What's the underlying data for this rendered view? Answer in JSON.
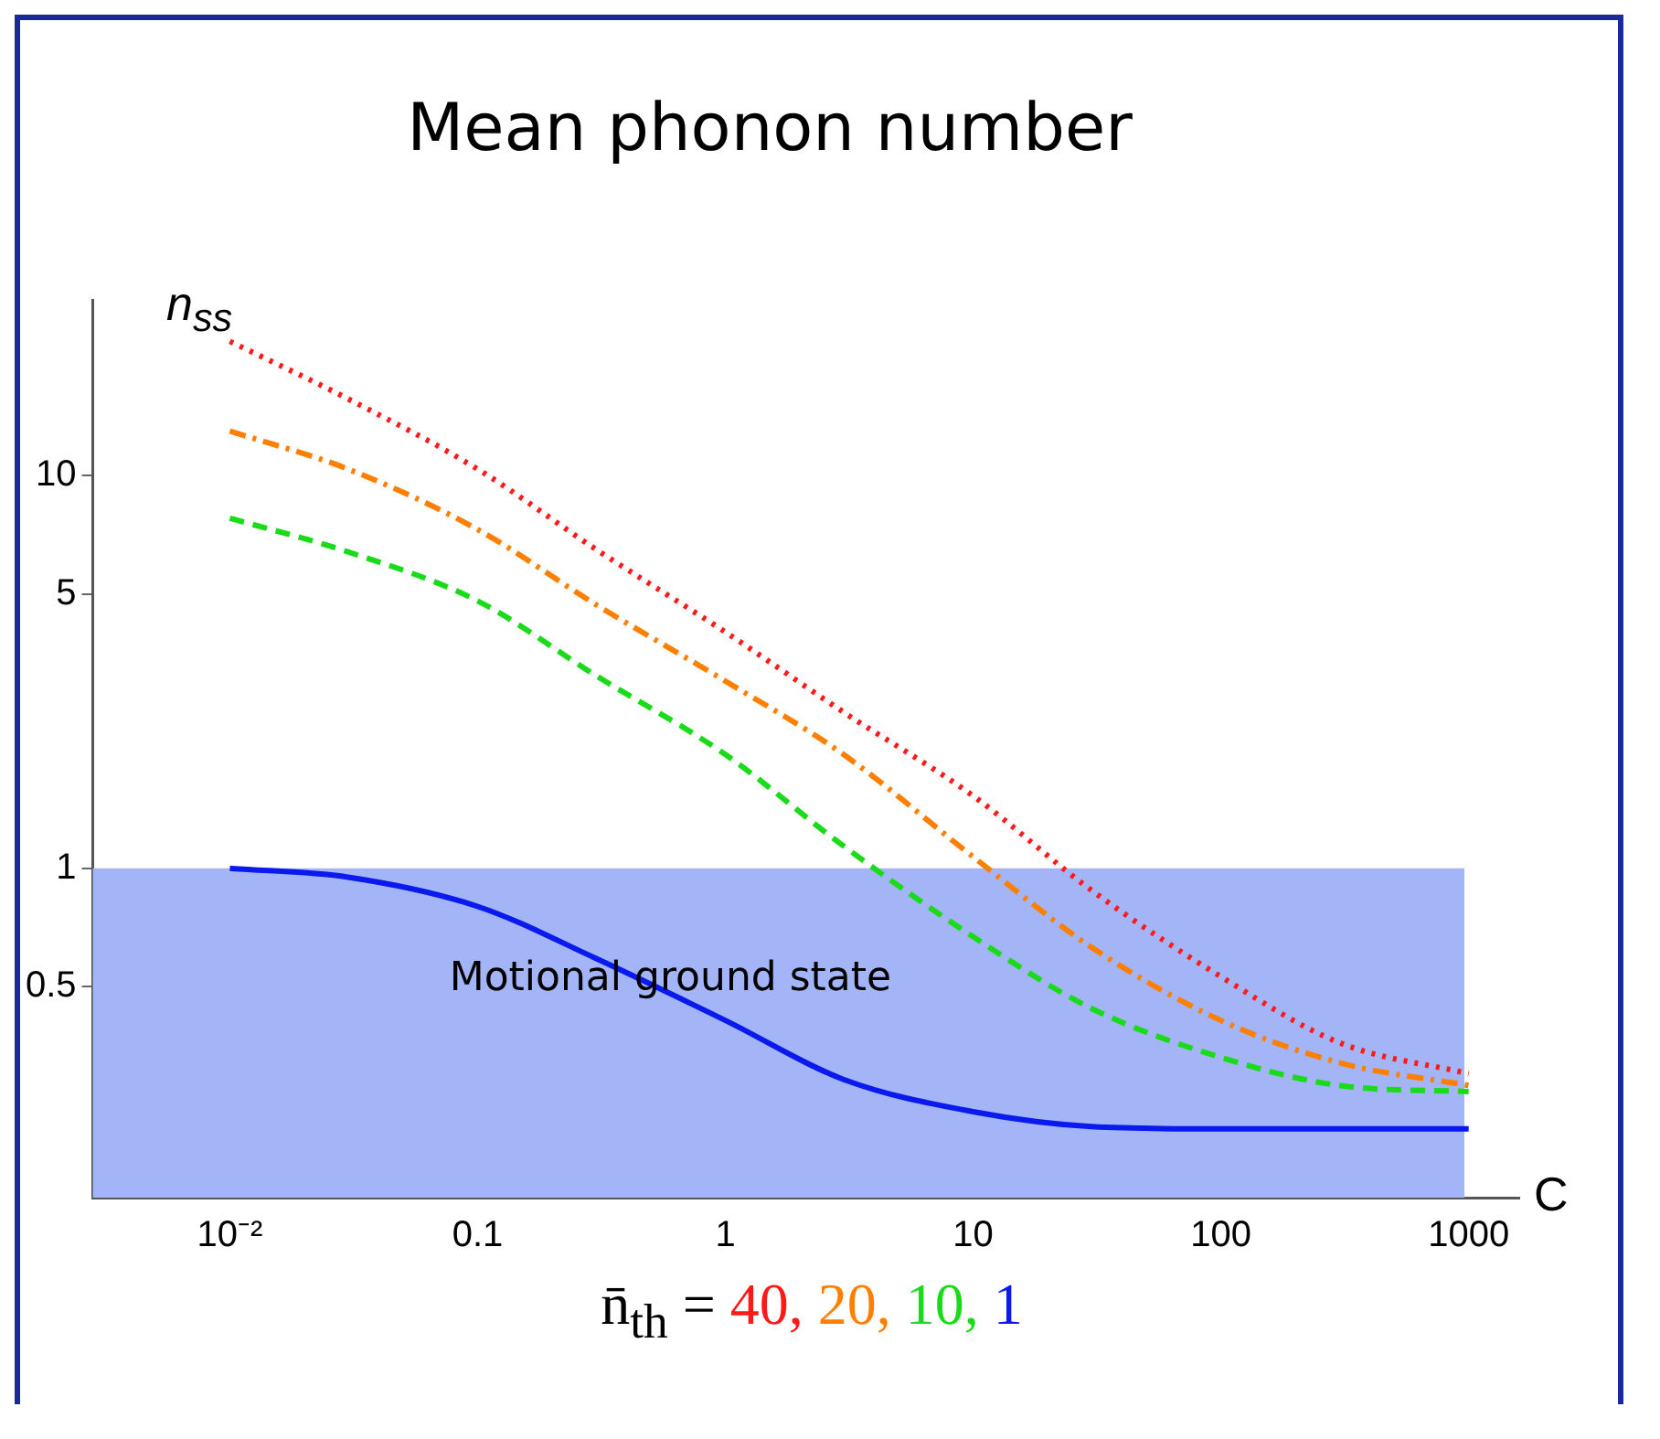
{
  "chart_data": {
    "type": "line",
    "title": "Mean phonon number",
    "xlabel": "C",
    "ylabel": "n$_{ss}$",
    "legend_title": "n̄$_{th}$ =",
    "legend": "bottom",
    "grid": false,
    "log": "xy",
    "xlim": [
      0.0028,
      1600
    ],
    "xticks": [
      {
        "value": 0.01,
        "label": "10⁻²"
      },
      0.1,
      1,
      10,
      100,
      1000
    ],
    "ylim": [
      0.145,
      28
    ],
    "yticks": [
      0.5,
      1,
      5,
      10
    ],
    "bands": [
      {
        "axis": "y",
        "from": 0.145,
        "to": 1,
        "label": "Motional ground state",
        "color": "#a3b4f7"
      }
    ],
    "series": [
      {
        "name": "40,",
        "color": "#ff1a1a",
        "line_style": "dotted",
        "x": [
          0.01,
          0.03,
          0.1,
          0.3,
          1,
          3,
          10,
          30,
          100,
          300,
          1000
        ],
        "values": [
          22,
          15.7,
          10.4,
          6.5,
          4.0,
          2.5,
          1.53,
          0.88,
          0.53,
          0.36,
          0.3
        ]
      },
      {
        "name": "20,",
        "color": "#ff8000",
        "line_style": "dashdot",
        "x": [
          0.01,
          0.03,
          0.1,
          0.3,
          1,
          3,
          10,
          30,
          100,
          300,
          1000
        ],
        "values": [
          13,
          10.4,
          7.3,
          4.7,
          3.0,
          1.95,
          1.07,
          0.63,
          0.41,
          0.32,
          0.28
        ]
      },
      {
        "name": "10,",
        "color": "#1adb1a",
        "line_style": "dashed",
        "x": [
          0.01,
          0.03,
          0.1,
          0.3,
          1,
          3,
          10,
          30,
          100,
          300,
          1000
        ],
        "values": [
          7.8,
          6.4,
          4.8,
          3.1,
          1.95,
          1.14,
          0.67,
          0.44,
          0.33,
          0.28,
          0.27
        ]
      },
      {
        "name": "1",
        "color": "#0a1aee",
        "line_style": "solid",
        "x": [
          0.01,
          0.03,
          0.1,
          0.3,
          1,
          3,
          10,
          30,
          100,
          300,
          1000
        ],
        "values": [
          1.0,
          0.95,
          0.8,
          0.59,
          0.41,
          0.29,
          0.24,
          0.22,
          0.217,
          0.217,
          0.217
        ]
      }
    ]
  }
}
